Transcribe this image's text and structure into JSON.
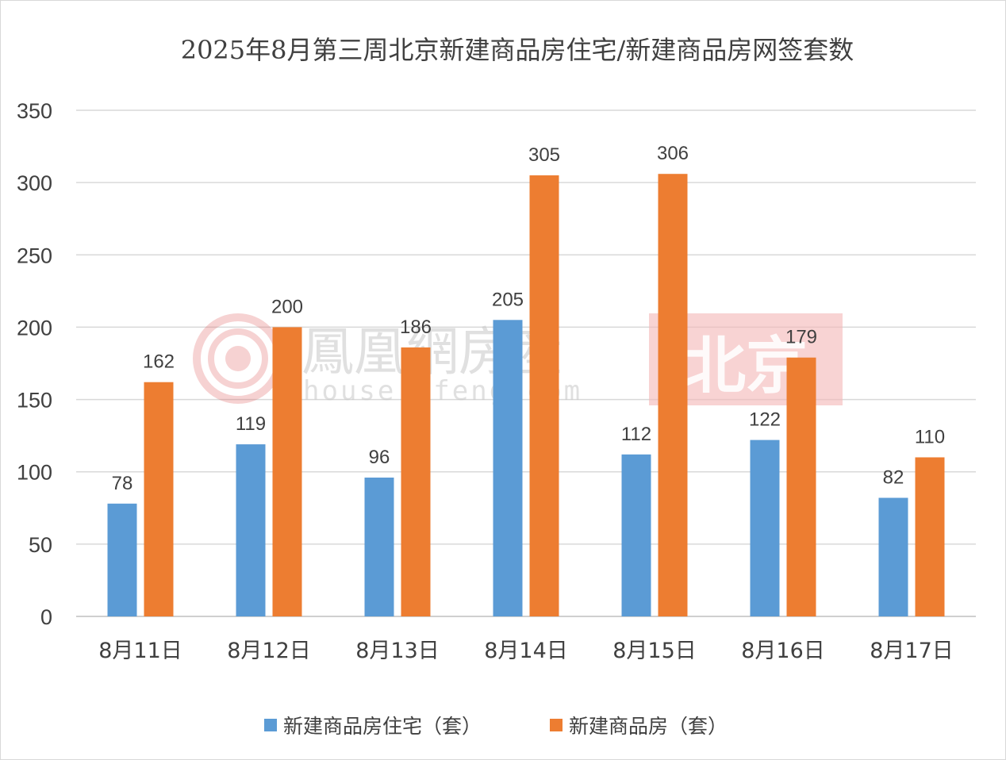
{
  "chart_data": {
    "type": "bar",
    "title": "2025年8月第三周北京新建商品房住宅/新建商品房网签套数",
    "categories": [
      "8月11日",
      "8月12日",
      "8月13日",
      "8月14日",
      "8月15日",
      "8月16日",
      "8月17日"
    ],
    "series": [
      {
        "name": "新建商品房住宅（套）",
        "values": [
          78,
          119,
          96,
          205,
          112,
          122,
          82
        ],
        "color": "#5b9bd5"
      },
      {
        "name": "新建商品房（套）",
        "values": [
          162,
          200,
          186,
          305,
          306,
          179,
          110
        ],
        "color": "#ed7d31"
      }
    ],
    "ylim": [
      0,
      350
    ],
    "yticks": [
      0,
      50,
      100,
      150,
      200,
      250,
      300,
      350
    ],
    "grid": true,
    "legend_position": "bottom",
    "data_labels": true
  },
  "watermark": {
    "brand_cn": "鳳凰網房産",
    "url": "house.ifeng.com",
    "city": "北京",
    "logo_icon": "ifeng-phoenix-logo-icon",
    "city_badge_color": "#f4b6b6"
  }
}
